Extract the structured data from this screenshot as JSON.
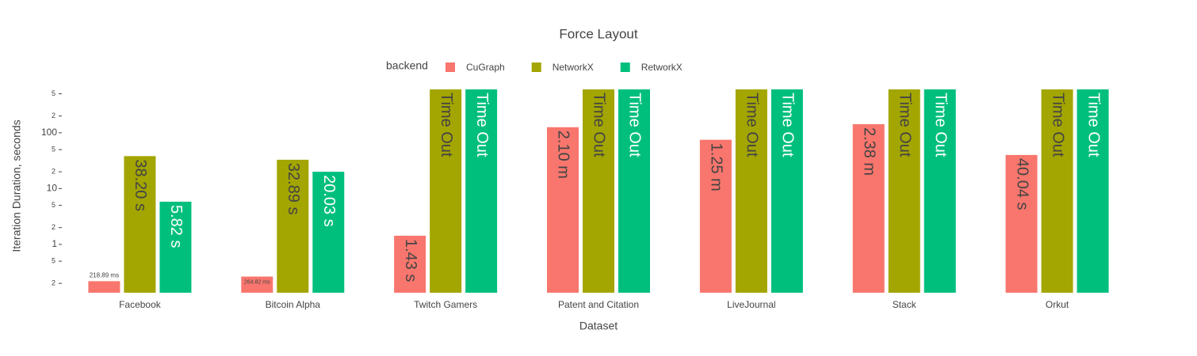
{
  "chart_data": {
    "type": "bar",
    "title": "Force Layout",
    "x_label": "Dataset",
    "y_label": "Iteration Duration, seconds",
    "legend_title": "backend",
    "categories": [
      "Facebook",
      "Bitcoin Alpha",
      "Twitch Gamers",
      "Patent and Citation",
      "LiveJournal",
      "Stack",
      "Orkut"
    ],
    "series": [
      {
        "name": "CuGraph",
        "color": "#F8766D",
        "values": [
          0.21889,
          0.26482,
          1.43,
          126,
          75,
          142.8,
          40.04
        ],
        "value_labels": [
          "218.89 ms",
          "264.82 ms",
          "1.43 s",
          "2.10 m",
          "1.25 m",
          "2.38 m",
          "40.04 s"
        ]
      },
      {
        "name": "NetworkX",
        "color": "#A3A500",
        "values": [
          38.2,
          32.89,
          600,
          600,
          600,
          600,
          600
        ],
        "value_labels": [
          "38.20 s",
          "32.89 s",
          "Time Out",
          "Time Out",
          "Time Out",
          "Time Out",
          "Time Out"
        ]
      },
      {
        "name": "RetworkX",
        "color": "#00BF7D",
        "values": [
          5.82,
          20.03,
          600,
          600,
          600,
          600,
          600
        ],
        "value_labels": [
          "5.82 s",
          "20.03 s",
          "Time Out",
          "Time Out",
          "Time Out",
          "Time Out",
          "Time Out"
        ]
      }
    ],
    "log_y": true,
    "ylim": [
      0.136,
      600
    ],
    "yticks": [
      {
        "value": 0.2,
        "label": "2"
      },
      {
        "value": 0.5,
        "label": "5"
      },
      1,
      {
        "value": 2,
        "label": "2"
      },
      {
        "value": 5,
        "label": "5"
      },
      10,
      {
        "value": 20,
        "label": "2"
      },
      {
        "value": 50,
        "label": "5"
      },
      100,
      {
        "value": 200,
        "label": "2"
      },
      {
        "value": 500,
        "label": "5"
      }
    ],
    "grid": false
  }
}
